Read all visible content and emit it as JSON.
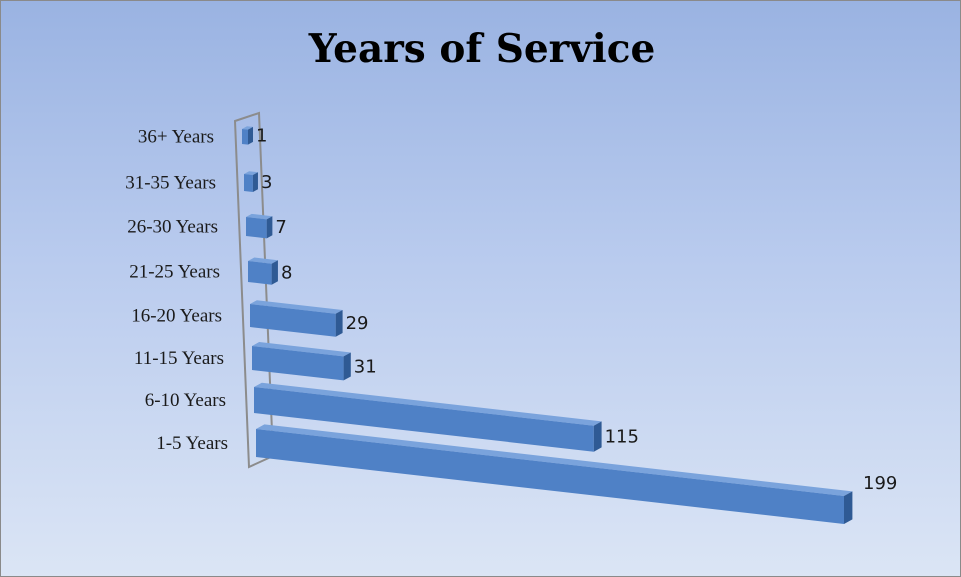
{
  "chart_data": {
    "type": "bar",
    "orientation": "horizontal",
    "style": "3d",
    "title": "Years of Service",
    "categories": [
      "1-5 Years",
      "6-10 Years",
      "11-15 Years",
      "16-20 Years",
      "21-25 Years",
      "26-30 Years",
      "31-35 Years",
      "36+ Years"
    ],
    "values": [
      199,
      115,
      31,
      29,
      8,
      7,
      3,
      1
    ],
    "data_labels": [
      "199",
      "115",
      "31",
      "29",
      "8",
      "7",
      "3",
      "1"
    ],
    "xlim": [
      0,
      199
    ],
    "grid": false,
    "legend": "none",
    "colors": {
      "bar_front": "#4f81c6",
      "bar_top": "#7aa3dc",
      "bar_side": "#2f5a94",
      "wall": "#8c8c8c",
      "bg_top": "#9ab3e2",
      "bg_bottom": "#dbe5f5"
    }
  }
}
